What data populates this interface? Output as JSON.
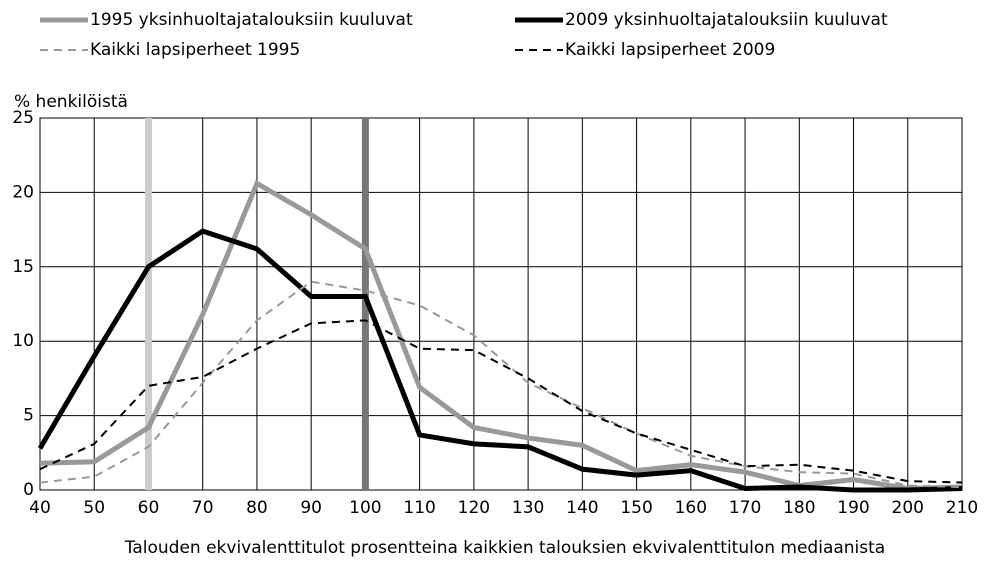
{
  "chart_data": {
    "type": "line",
    "y_label": "% henkilöistä",
    "x_label": "Talouden ekvivalenttitulot prosentteina kaikkien talouksien ekvivalenttitulon mediaanista",
    "x": [
      40,
      50,
      60,
      70,
      80,
      90,
      100,
      110,
      120,
      130,
      140,
      150,
      160,
      170,
      180,
      190,
      200,
      210
    ],
    "series": [
      {
        "name": "1995 yksinhuoltajatalouksiin kuuluvat",
        "color": "#999999",
        "dashed": false,
        "values": [
          1.8,
          1.9,
          4.2,
          11.8,
          20.6,
          18.5,
          16.2,
          6.9,
          4.2,
          3.5,
          3.0,
          1.3,
          1.7,
          1.2,
          0.3,
          0.7,
          0.1,
          0.2
        ]
      },
      {
        "name": "2009 yksinhuoltajatalouksiin kuuluvat",
        "color": "#000000",
        "dashed": false,
        "values": [
          2.8,
          9.0,
          15.0,
          17.4,
          16.2,
          13.0,
          13.0,
          3.7,
          3.1,
          2.9,
          1.4,
          1.0,
          1.3,
          0.1,
          0.2,
          0,
          0,
          0.1
        ]
      },
      {
        "name": "Kaikki lapsiperheet 1995",
        "color": "#999999",
        "dashed": true,
        "values": [
          0.5,
          0.9,
          2.9,
          7.2,
          11.4,
          14.0,
          13.4,
          12.4,
          10.4,
          7.2,
          5.5,
          3.8,
          2.3,
          1.6,
          1.2,
          1.1,
          0.3,
          0.2
        ]
      },
      {
        "name": "Kaikki lapsiperheet 2009",
        "color": "#000000",
        "dashed": true,
        "values": [
          1.4,
          3.1,
          7.0,
          7.6,
          9.5,
          11.2,
          11.4,
          9.5,
          9.4,
          7.5,
          5.3,
          3.8,
          2.7,
          1.6,
          1.7,
          1.3,
          0.6,
          0.5
        ]
      }
    ],
    "reference_lines": [
      {
        "x": 60,
        "color": "#cccccc"
      },
      {
        "x": 100,
        "color": "#777777"
      }
    ],
    "xlim": [
      40,
      210
    ],
    "xticks": [
      40,
      50,
      60,
      70,
      80,
      90,
      100,
      110,
      120,
      130,
      140,
      150,
      160,
      170,
      180,
      190,
      200,
      210
    ],
    "ylim": [
      0,
      25
    ],
    "yticks": [
      0,
      5,
      10,
      15,
      20,
      25
    ],
    "grid": true
  }
}
